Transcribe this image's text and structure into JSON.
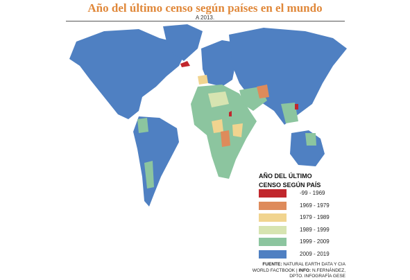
{
  "header": {
    "title": "Año del último censo según países en el mundo",
    "subtitle": "A 2013."
  },
  "legend": {
    "title": "AÑO DEL ÚLTIMO CENSO SEGÚN PAÍS",
    "items": [
      {
        "label": "-99 - 1969",
        "color": "#c1272d"
      },
      {
        "label": "1969 - 1979",
        "color": "#de8b5b"
      },
      {
        "label": "1979 - 1989",
        "color": "#f1d48f"
      },
      {
        "label": "1989 - 1999",
        "color": "#d7e4b1"
      },
      {
        "label": "1999 - 2009",
        "color": "#8cc59f"
      },
      {
        "label": "2009 - 2019",
        "color": "#4f80c2"
      }
    ]
  },
  "source": {
    "label": "FUENTE:",
    "text": "NATURAL EARTH DATA Y CIA WORLD FACTBOOK |",
    "info_label": "INFO:",
    "info_text": "N.FERNÁNDEZ, DPTO. INFOGRAFÍA GESE"
  }
}
